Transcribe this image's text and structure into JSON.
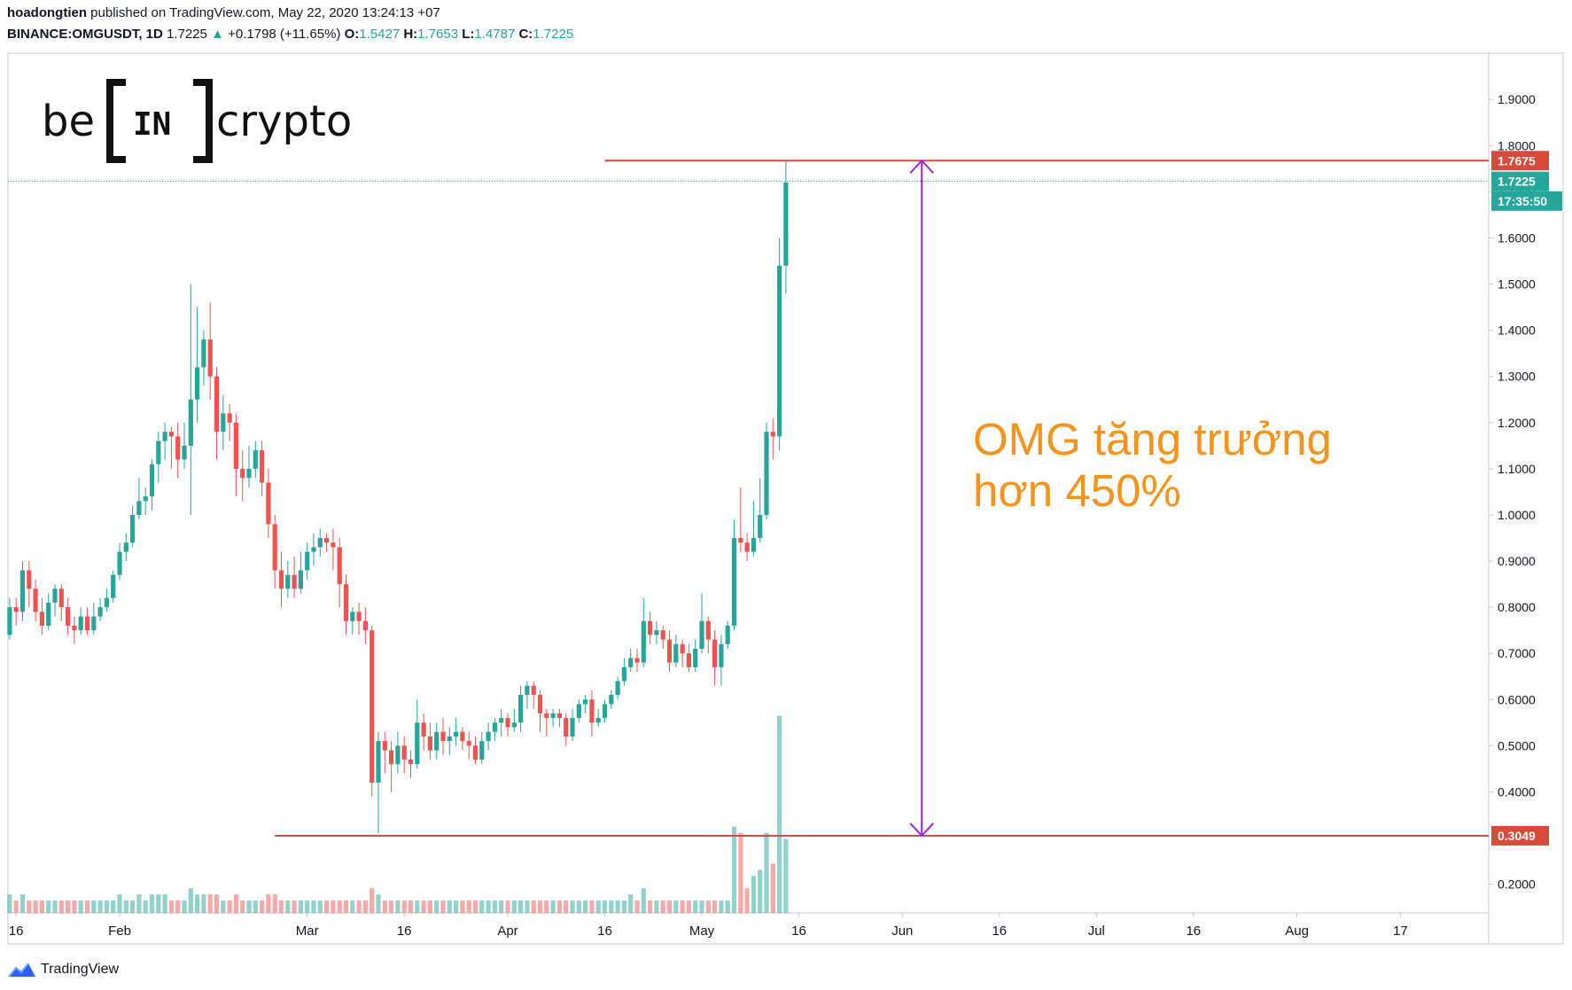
{
  "header": {
    "publisher": "hoadongtien",
    "published_text": "published on TradingView.com, May 22, 2020 13:24:13 +07",
    "symbol": "BINANCE:OMGUSDT, 1D",
    "last": "1.7225",
    "change": "+0.1798 (+11.65%)",
    "o_label": "O:",
    "o_value": "1.5427",
    "h_label": "H:",
    "h_value": "1.7653",
    "l_label": "L:",
    "l_value": "1.4787",
    "c_label": "C:",
    "c_value": "1.7225"
  },
  "logo": {
    "text_left": "be",
    "text_mid": "IN",
    "text_right": "crypto"
  },
  "annotation": {
    "line1": "OMG tăng trưởng",
    "line2": "hơn 450%"
  },
  "footer": {
    "brand": "TradingView"
  },
  "colors": {
    "up": "#26a69a",
    "down": "#ef5350",
    "hline": "#d84a3a",
    "arrow": "#a020f0",
    "annotation": "#f7931a",
    "grid_text": "#131722"
  },
  "chart_data": {
    "type": "candlestick",
    "ylim": [
      0.18,
      1.96
    ],
    "y_ticks": [
      "1.9000",
      "1.8000",
      "1.7000",
      "1.6000",
      "1.5000",
      "1.4000",
      "1.3000",
      "1.2000",
      "1.1000",
      "1.0000",
      "0.9000",
      "0.8000",
      "0.7000",
      "0.6000",
      "0.5000",
      "0.4000",
      "0.2000"
    ],
    "x_ticks": [
      {
        "label": "16",
        "day": -16
      },
      {
        "label": "Feb",
        "day": 0
      },
      {
        "label": "Mar",
        "day": 29
      },
      {
        "label": "16",
        "day": 44
      },
      {
        "label": "Apr",
        "day": 60
      },
      {
        "label": "16",
        "day": 75
      },
      {
        "label": "May",
        "day": 90
      },
      {
        "label": "16",
        "day": 105
      },
      {
        "label": "Jun",
        "day": 121
      },
      {
        "label": "16",
        "day": 136
      },
      {
        "label": "Jul",
        "day": 151
      },
      {
        "label": "16",
        "day": 166
      },
      {
        "label": "Aug",
        "day": 182
      },
      {
        "label": "17",
        "day": 198
      }
    ],
    "price_labels": [
      {
        "text": "1.7675",
        "value": 1.7675,
        "color": "#d84a3a"
      },
      {
        "text": "1.7225",
        "value": 1.7225,
        "color": "#26a69a"
      },
      {
        "text": "17:35:50",
        "value": 1.68,
        "color": "#26a69a"
      },
      {
        "text": "0.3049",
        "value": 0.3049,
        "color": "#d84a3a"
      }
    ],
    "horizontal_lines": [
      {
        "value": 1.7675,
        "from_day": 75
      },
      {
        "value": 0.3049,
        "from_day": 24
      }
    ],
    "last_price": 1.7225,
    "arrow": {
      "day": 124,
      "from": 0.3049,
      "to": 1.7675
    },
    "candles": [
      [
        0.74,
        0.8,
        0.82,
        0.73,
        0.03
      ],
      [
        0.8,
        0.79,
        0.82,
        0.76,
        0.02
      ],
      [
        0.79,
        0.88,
        0.9,
        0.77,
        0.03
      ],
      [
        0.88,
        0.84,
        0.9,
        0.8,
        0.02
      ],
      [
        0.84,
        0.79,
        0.86,
        0.77,
        0.02
      ],
      [
        0.79,
        0.76,
        0.82,
        0.74,
        0.02
      ],
      [
        0.76,
        0.81,
        0.83,
        0.75,
        0.02
      ],
      [
        0.81,
        0.84,
        0.85,
        0.78,
        0.02
      ],
      [
        0.84,
        0.8,
        0.85,
        0.77,
        0.02
      ],
      [
        0.8,
        0.76,
        0.82,
        0.74,
        0.02
      ],
      [
        0.76,
        0.75,
        0.78,
        0.72,
        0.02
      ],
      [
        0.75,
        0.78,
        0.8,
        0.74,
        0.02
      ],
      [
        0.78,
        0.75,
        0.8,
        0.74,
        0.02
      ],
      [
        0.75,
        0.78,
        0.81,
        0.74,
        0.02
      ],
      [
        0.78,
        0.8,
        0.82,
        0.77,
        0.02
      ],
      [
        0.8,
        0.82,
        0.84,
        0.79,
        0.02
      ],
      [
        0.82,
        0.87,
        0.88,
        0.81,
        0.02
      ],
      [
        0.87,
        0.92,
        0.94,
        0.86,
        0.03
      ],
      [
        0.92,
        0.94,
        0.96,
        0.9,
        0.02
      ],
      [
        0.94,
        1.0,
        1.02,
        0.93,
        0.02
      ],
      [
        1.0,
        1.03,
        1.08,
        0.99,
        0.03
      ],
      [
        1.03,
        1.04,
        1.06,
        1.0,
        0.02
      ],
      [
        1.04,
        1.11,
        1.12,
        1.01,
        0.03
      ],
      [
        1.11,
        1.16,
        1.18,
        1.07,
        0.03
      ],
      [
        1.16,
        1.18,
        1.2,
        1.12,
        0.03
      ],
      [
        1.18,
        1.17,
        1.19,
        1.1,
        0.02
      ],
      [
        1.17,
        1.12,
        1.2,
        1.08,
        0.02
      ],
      [
        1.12,
        1.15,
        1.2,
        1.1,
        0.02
      ],
      [
        1.15,
        1.25,
        1.5,
        1.0,
        0.04
      ],
      [
        1.25,
        1.32,
        1.45,
        1.2,
        0.03
      ],
      [
        1.32,
        1.38,
        1.4,
        1.28,
        0.03
      ],
      [
        1.38,
        1.3,
        1.46,
        1.25,
        0.03
      ],
      [
        1.3,
        1.18,
        1.32,
        1.12,
        0.03
      ],
      [
        1.18,
        1.22,
        1.26,
        1.14,
        0.02
      ],
      [
        1.22,
        1.2,
        1.24,
        1.16,
        0.02
      ],
      [
        1.2,
        1.1,
        1.22,
        1.04,
        0.03
      ],
      [
        1.1,
        1.08,
        1.14,
        1.03,
        0.02
      ],
      [
        1.08,
        1.1,
        1.15,
        1.06,
        0.02
      ],
      [
        1.1,
        1.14,
        1.16,
        1.08,
        0.02
      ],
      [
        1.14,
        1.07,
        1.16,
        1.04,
        0.02
      ],
      [
        1.07,
        0.98,
        1.1,
        0.95,
        0.03
      ],
      [
        0.98,
        0.88,
        1.0,
        0.84,
        0.03
      ],
      [
        0.88,
        0.84,
        0.92,
        0.8,
        0.02
      ],
      [
        0.84,
        0.87,
        0.9,
        0.82,
        0.02
      ],
      [
        0.87,
        0.84,
        0.91,
        0.82,
        0.02
      ],
      [
        0.84,
        0.88,
        0.92,
        0.83,
        0.02
      ],
      [
        0.88,
        0.92,
        0.94,
        0.86,
        0.02
      ],
      [
        0.92,
        0.93,
        0.96,
        0.89,
        0.02
      ],
      [
        0.93,
        0.95,
        0.97,
        0.91,
        0.02
      ],
      [
        0.95,
        0.94,
        0.96,
        0.92,
        0.02
      ],
      [
        0.94,
        0.93,
        0.97,
        0.88,
        0.02
      ],
      [
        0.93,
        0.85,
        0.95,
        0.8,
        0.02
      ],
      [
        0.85,
        0.77,
        0.87,
        0.74,
        0.02
      ],
      [
        0.77,
        0.79,
        0.8,
        0.74,
        0.02
      ],
      [
        0.79,
        0.77,
        0.81,
        0.74,
        0.02
      ],
      [
        0.77,
        0.75,
        0.8,
        0.72,
        0.02
      ],
      [
        0.75,
        0.42,
        0.76,
        0.39,
        0.04
      ],
      [
        0.42,
        0.51,
        0.53,
        0.31,
        0.03
      ],
      [
        0.51,
        0.49,
        0.53,
        0.44,
        0.02
      ],
      [
        0.49,
        0.46,
        0.51,
        0.4,
        0.02
      ],
      [
        0.46,
        0.5,
        0.53,
        0.44,
        0.02
      ],
      [
        0.5,
        0.47,
        0.52,
        0.44,
        0.02
      ],
      [
        0.47,
        0.46,
        0.49,
        0.43,
        0.02
      ],
      [
        0.46,
        0.55,
        0.6,
        0.45,
        0.02
      ],
      [
        0.55,
        0.52,
        0.57,
        0.49,
        0.02
      ],
      [
        0.52,
        0.49,
        0.55,
        0.47,
        0.02
      ],
      [
        0.49,
        0.53,
        0.55,
        0.47,
        0.02
      ],
      [
        0.53,
        0.51,
        0.56,
        0.48,
        0.02
      ],
      [
        0.51,
        0.52,
        0.54,
        0.48,
        0.02
      ],
      [
        0.52,
        0.53,
        0.56,
        0.5,
        0.02
      ],
      [
        0.53,
        0.51,
        0.54,
        0.49,
        0.02
      ],
      [
        0.51,
        0.5,
        0.53,
        0.47,
        0.02
      ],
      [
        0.5,
        0.47,
        0.52,
        0.46,
        0.02
      ],
      [
        0.47,
        0.51,
        0.53,
        0.46,
        0.02
      ],
      [
        0.51,
        0.53,
        0.55,
        0.49,
        0.02
      ],
      [
        0.53,
        0.55,
        0.56,
        0.51,
        0.02
      ],
      [
        0.55,
        0.56,
        0.58,
        0.52,
        0.02
      ],
      [
        0.56,
        0.54,
        0.57,
        0.52,
        0.02
      ],
      [
        0.54,
        0.55,
        0.58,
        0.53,
        0.02
      ],
      [
        0.55,
        0.61,
        0.63,
        0.53,
        0.02
      ],
      [
        0.61,
        0.63,
        0.64,
        0.58,
        0.02
      ],
      [
        0.63,
        0.61,
        0.64,
        0.58,
        0.02
      ],
      [
        0.61,
        0.57,
        0.62,
        0.53,
        0.02
      ],
      [
        0.57,
        0.56,
        0.58,
        0.52,
        0.02
      ],
      [
        0.56,
        0.57,
        0.58,
        0.54,
        0.02
      ],
      [
        0.57,
        0.56,
        0.58,
        0.54,
        0.02
      ],
      [
        0.56,
        0.52,
        0.57,
        0.5,
        0.02
      ],
      [
        0.52,
        0.56,
        0.58,
        0.51,
        0.02
      ],
      [
        0.56,
        0.59,
        0.6,
        0.55,
        0.02
      ],
      [
        0.59,
        0.6,
        0.61,
        0.57,
        0.02
      ],
      [
        0.6,
        0.55,
        0.62,
        0.52,
        0.02
      ],
      [
        0.55,
        0.56,
        0.58,
        0.54,
        0.02
      ],
      [
        0.56,
        0.59,
        0.6,
        0.55,
        0.02
      ],
      [
        0.59,
        0.61,
        0.62,
        0.58,
        0.02
      ],
      [
        0.61,
        0.64,
        0.65,
        0.6,
        0.02
      ],
      [
        0.64,
        0.67,
        0.69,
        0.63,
        0.02
      ],
      [
        0.67,
        0.69,
        0.71,
        0.66,
        0.03
      ],
      [
        0.69,
        0.68,
        0.71,
        0.66,
        0.02
      ],
      [
        0.68,
        0.77,
        0.82,
        0.67,
        0.04
      ],
      [
        0.77,
        0.74,
        0.79,
        0.72,
        0.02
      ],
      [
        0.74,
        0.75,
        0.77,
        0.72,
        0.02
      ],
      [
        0.75,
        0.73,
        0.76,
        0.71,
        0.02
      ],
      [
        0.73,
        0.68,
        0.75,
        0.66,
        0.02
      ],
      [
        0.68,
        0.72,
        0.74,
        0.67,
        0.02
      ],
      [
        0.72,
        0.7,
        0.73,
        0.67,
        0.02
      ],
      [
        0.7,
        0.67,
        0.72,
        0.66,
        0.02
      ],
      [
        0.67,
        0.71,
        0.73,
        0.66,
        0.02
      ],
      [
        0.71,
        0.77,
        0.83,
        0.7,
        0.02
      ],
      [
        0.77,
        0.73,
        0.78,
        0.7,
        0.02
      ],
      [
        0.73,
        0.67,
        0.75,
        0.63,
        0.02
      ],
      [
        0.67,
        0.72,
        0.74,
        0.63,
        0.02
      ],
      [
        0.72,
        0.76,
        0.77,
        0.71,
        0.02
      ],
      [
        0.76,
        0.95,
        0.99,
        0.75,
        0.14
      ],
      [
        0.95,
        0.94,
        1.06,
        0.92,
        0.13
      ],
      [
        0.94,
        0.92,
        0.96,
        0.9,
        0.04
      ],
      [
        0.92,
        0.95,
        1.03,
        0.91,
        0.06
      ],
      [
        0.95,
        1.0,
        1.08,
        0.94,
        0.07
      ],
      [
        1.0,
        1.18,
        1.2,
        0.99,
        0.13
      ],
      [
        1.18,
        1.17,
        1.21,
        1.12,
        0.08
      ],
      [
        1.17,
        1.54,
        1.6,
        1.14,
        0.32
      ],
      [
        1.54,
        1.72,
        1.77,
        1.48,
        0.12
      ]
    ]
  }
}
